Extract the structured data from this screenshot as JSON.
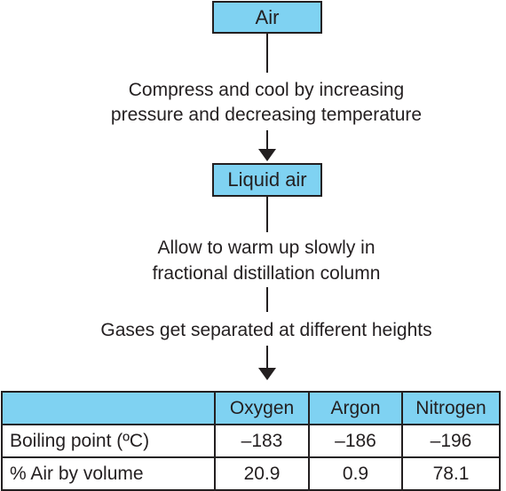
{
  "flow": {
    "step1": "Air",
    "arrow1_line1": "Compress and cool by increasing",
    "arrow1_line2": "pressure and decreasing temperature",
    "step2": "Liquid air",
    "arrow2_line1": "Allow to warm up slowly in",
    "arrow2_line2": "fractional distillation column",
    "arrow2_line3": "Gases get separated at different heights"
  },
  "table": {
    "headers": [
      "",
      "Oxygen",
      "Argon",
      "Nitrogen"
    ],
    "rows": [
      {
        "label": "Boiling point (ºC)",
        "values": [
          "–183",
          "–186",
          "–196"
        ]
      },
      {
        "label": "% Air by volume",
        "values": [
          "20.9",
          "0.9",
          "78.1"
        ]
      }
    ]
  },
  "colors": {
    "box_fill": "#7fd2f2",
    "line": "#231f20",
    "text": "#231f20"
  }
}
